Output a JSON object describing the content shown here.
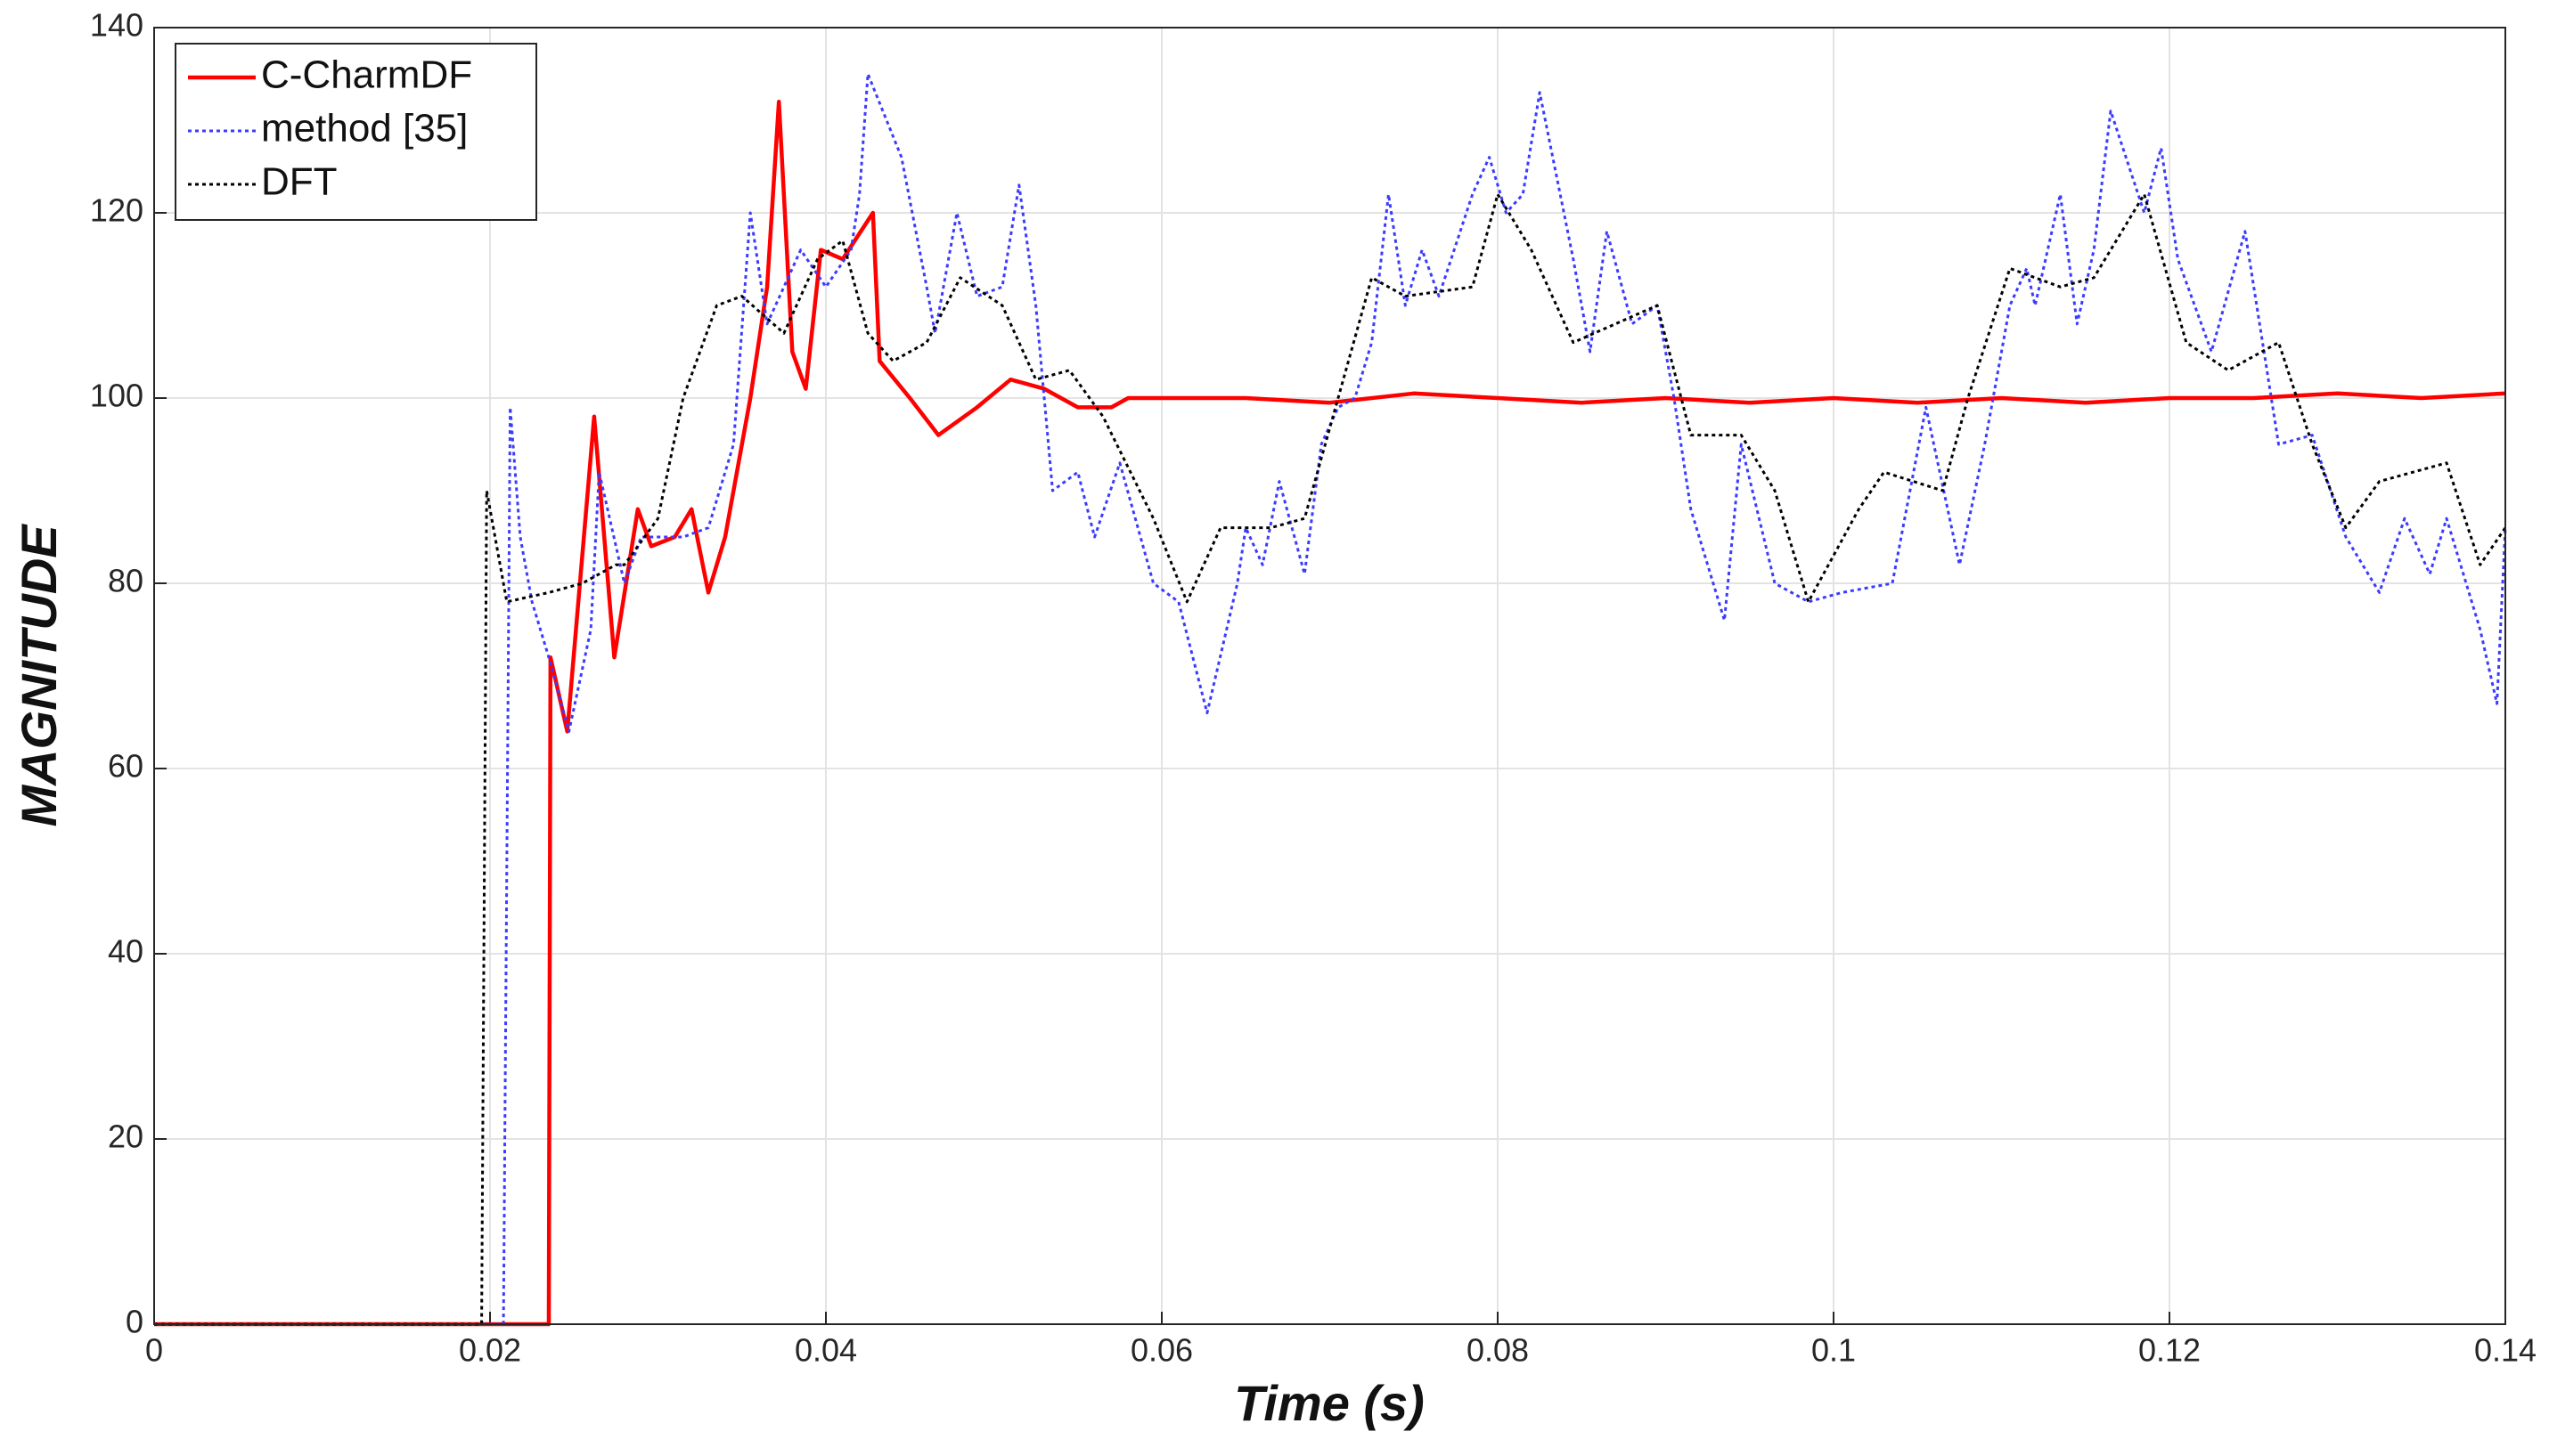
{
  "chart_data": {
    "type": "line",
    "xlabel": "Time (s)",
    "ylabel": "MAGNITUDE",
    "xlim": [
      0,
      0.14
    ],
    "ylim": [
      0,
      140
    ],
    "xticks": [
      0,
      0.02,
      0.04,
      0.06,
      0.08,
      0.1,
      0.12,
      0.14
    ],
    "yticks": [
      0,
      20,
      40,
      60,
      80,
      100,
      120,
      140
    ],
    "grid": true,
    "legend": "upper left",
    "series": [
      {
        "name": "C-CharmDF",
        "color": "#ff0000",
        "linestyle": "solid",
        "x": [
          0,
          0.0235,
          0.0236,
          0.0246,
          0.0262,
          0.0274,
          0.0288,
          0.0296,
          0.031,
          0.032,
          0.033,
          0.034,
          0.0355,
          0.0365,
          0.0372,
          0.038,
          0.0388,
          0.0397,
          0.041,
          0.0428,
          0.0432,
          0.045,
          0.0467,
          0.049,
          0.051,
          0.053,
          0.055,
          0.057,
          0.058,
          0.065,
          0.07,
          0.075,
          0.08,
          0.085,
          0.09,
          0.095,
          0.1,
          0.105,
          0.11,
          0.115,
          0.12,
          0.125,
          0.13,
          0.135,
          0.14
        ],
        "values": [
          0,
          0,
          72,
          64,
          98,
          72,
          88,
          84,
          85,
          88,
          79,
          85,
          100,
          112,
          132,
          105,
          101,
          116,
          115,
          120,
          104,
          100,
          96,
          99,
          102,
          101,
          99,
          99,
          100,
          100,
          99.5,
          100.5,
          100,
          99.5,
          100,
          99.5,
          100,
          99.5,
          100,
          99.5,
          100,
          100,
          100.5,
          100,
          100.5
        ]
      },
      {
        "name": "method [35]",
        "color": "#3b3bff",
        "linestyle": "dotted",
        "x": [
          0,
          0.0208,
          0.0212,
          0.0218,
          0.0225,
          0.0235,
          0.0247,
          0.026,
          0.0265,
          0.028,
          0.029,
          0.0315,
          0.033,
          0.0345,
          0.0355,
          0.0365,
          0.037,
          0.0385,
          0.04,
          0.0415,
          0.042,
          0.0425,
          0.0445,
          0.046,
          0.0465,
          0.0478,
          0.049,
          0.0505,
          0.0515,
          0.0525,
          0.0535,
          0.055,
          0.056,
          0.0575,
          0.0595,
          0.061,
          0.0627,
          0.0645,
          0.065,
          0.066,
          0.067,
          0.0685,
          0.0695,
          0.0705,
          0.0715,
          0.0725,
          0.0735,
          0.0745,
          0.0755,
          0.0765,
          0.0785,
          0.0795,
          0.0805,
          0.0815,
          0.0825,
          0.0845,
          0.0855,
          0.0865,
          0.088,
          0.0895,
          0.0905,
          0.0915,
          0.0935,
          0.0945,
          0.0965,
          0.0985,
          0.1005,
          0.1035,
          0.1055,
          0.1075,
          0.109,
          0.1105,
          0.1115,
          0.112,
          0.1135,
          0.1145,
          0.1155,
          0.1165,
          0.1185,
          0.1195,
          0.1205,
          0.1225,
          0.1245,
          0.1265,
          0.1285,
          0.1305,
          0.1325,
          0.134,
          0.1355,
          0.1365,
          0.1385,
          0.1395,
          0.14
        ],
        "values": [
          0,
          0,
          99,
          85,
          78,
          72,
          64,
          75,
          92,
          80,
          85,
          85,
          86,
          95,
          120,
          108,
          110,
          116,
          112,
          116,
          122,
          135,
          126,
          112,
          107,
          120,
          111,
          112,
          123,
          110,
          90,
          92,
          85,
          93,
          80,
          78,
          66,
          80,
          86,
          82,
          91,
          81,
          95,
          99,
          100,
          106,
          122,
          110,
          116,
          111,
          122,
          126,
          120,
          122,
          133,
          115,
          105,
          118,
          108,
          110,
          100,
          88,
          76,
          95,
          80,
          78,
          79,
          80,
          99,
          82,
          95,
          110,
          114,
          110,
          122,
          108,
          116,
          131,
          120,
          127,
          115,
          105,
          118,
          95,
          96,
          85,
          79,
          87,
          81,
          87,
          75,
          67,
          86
        ]
      },
      {
        "name": "DFT",
        "color": "#000000",
        "linestyle": "dotted",
        "x": [
          0,
          0.0195,
          0.0198,
          0.021,
          0.0235,
          0.0255,
          0.0275,
          0.028,
          0.03,
          0.0315,
          0.0335,
          0.035,
          0.0375,
          0.0395,
          0.041,
          0.0425,
          0.044,
          0.046,
          0.048,
          0.0505,
          0.0525,
          0.0545,
          0.0565,
          0.0595,
          0.0615,
          0.0635,
          0.0665,
          0.0685,
          0.0705,
          0.0725,
          0.0745,
          0.0785,
          0.08,
          0.082,
          0.0845,
          0.087,
          0.0895,
          0.0915,
          0.0945,
          0.0965,
          0.0985,
          0.1015,
          0.103,
          0.1065,
          0.108,
          0.1105,
          0.1135,
          0.1155,
          0.1185,
          0.121,
          0.1235,
          0.1265,
          0.1285,
          0.1305,
          0.1325,
          0.1365,
          0.1385,
          0.14
        ],
        "values": [
          0,
          0,
          90,
          78,
          79,
          80,
          82,
          82,
          87,
          100,
          110,
          111,
          107,
          115,
          117,
          107,
          104,
          106,
          113,
          110,
          102,
          103,
          98,
          87,
          78,
          86,
          86,
          87,
          100,
          113,
          111,
          112,
          122,
          116,
          106,
          108,
          110,
          96,
          96,
          90,
          78,
          88,
          92,
          90,
          100,
          114,
          112,
          113,
          122,
          106,
          103,
          106,
          95,
          86,
          91,
          93,
          82,
          86
        ]
      }
    ]
  }
}
